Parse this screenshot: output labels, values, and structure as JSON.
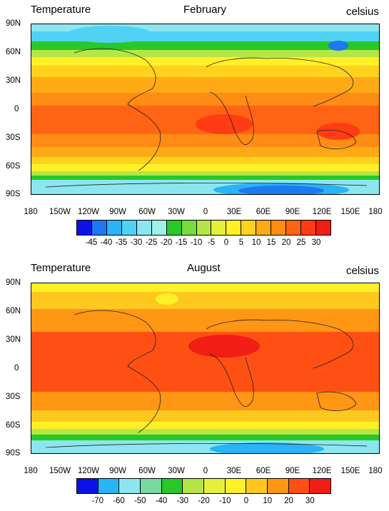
{
  "feb": {
    "title_left": "Temperature",
    "title_center": "February",
    "title_right": "celsius",
    "lat_labels": [
      "90N",
      "60N",
      "30N",
      "0",
      "30S",
      "60S",
      "90S"
    ],
    "lon_labels": [
      "180",
      "150W",
      "120W",
      "90W",
      "60W",
      "30W",
      "0",
      "30E",
      "60E",
      "90E",
      "120E",
      "150E",
      "180"
    ],
    "colorbar": {
      "labels": [
        "-45",
        "-40",
        "-35",
        "-30",
        "-25",
        "-20",
        "-15",
        "-10",
        "-5",
        "0",
        "5",
        "10",
        "15",
        "20",
        "25",
        "30"
      ],
      "colors": [
        "#0a14e6",
        "#1e78f0",
        "#28b4f5",
        "#50d2f5",
        "#8ce6f0",
        "#a0f0e6",
        "#28c828",
        "#78dc3c",
        "#b4e646",
        "#e6f03c",
        "#fff028",
        "#ffd21e",
        "#ffaa14",
        "#ff8c14",
        "#ff6414",
        "#ff3c14",
        "#f01e14"
      ]
    }
  },
  "aug": {
    "title_left": "Temperature",
    "title_center": "August",
    "title_right": "celsius",
    "lat_labels": [
      "90N",
      "60N",
      "30N",
      "0",
      "30S",
      "60S",
      "90S"
    ],
    "lon_labels": [
      "180",
      "150W",
      "120W",
      "90W",
      "60W",
      "30W",
      "0",
      "30E",
      "60E",
      "90E",
      "120E",
      "150E",
      "180"
    ],
    "colorbar": {
      "labels": [
        "-70",
        "-60",
        "-50",
        "-40",
        "-30",
        "-20",
        "-10",
        "0",
        "10",
        "20",
        "30"
      ],
      "colors": [
        "#0a14e6",
        "#28b4f5",
        "#8ce6f0",
        "#78d8a0",
        "#28c828",
        "#b4e646",
        "#e6f03c",
        "#fff028",
        "#ffc81e",
        "#ff9614",
        "#ff5014",
        "#f01e14"
      ]
    }
  }
}
